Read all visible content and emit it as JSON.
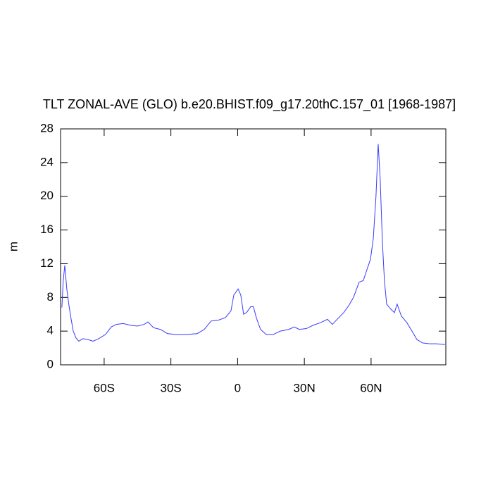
{
  "chart_data": {
    "type": "line",
    "title": "TLT ZONAL-AVE (GLO) b.e20.BHIST.f09_g17.20thC.157_01 [1968-1987]",
    "ylabel": "m",
    "x": [
      -79.0,
      -78.4,
      -77.7,
      -76.8,
      -75.8,
      -74.9,
      -73.9,
      -72.7,
      -71.4,
      -69.5,
      -67.3,
      -65.0,
      -62.5,
      -59.4,
      -56.8,
      -54.6,
      -51.4,
      -48.3,
      -45.1,
      -42.0,
      -40.3,
      -37.8,
      -34.7,
      -31.5,
      -27.7,
      -23.0,
      -18.2,
      -15.0,
      -11.9,
      -8.7,
      -5.5,
      -3.0,
      -1.7,
      -0.8,
      0.2,
      1.4,
      2.7,
      4.0,
      5.9,
      7.1,
      8.4,
      10.3,
      12.8,
      16.0,
      19.2,
      23.0,
      25.5,
      27.7,
      30.9,
      34.0,
      37.2,
      40.4,
      42.6,
      45.1,
      47.7,
      49.9,
      52.1,
      54.6,
      56.5,
      58.4,
      59.7,
      61.0,
      62.2,
      63.2,
      64.1,
      65.1,
      66.0,
      67.0,
      68.9,
      70.5,
      71.7,
      73.6,
      76.1,
      78.4,
      80.6,
      83.1,
      86.3,
      89.4,
      93.2
    ],
    "series": [
      {
        "name": "TLT",
        "color": "#3a3aff",
        "values": [
          6.8,
          10.0,
          11.8,
          9.0,
          7.0,
          5.5,
          4.0,
          3.2,
          2.8,
          3.1,
          3.0,
          2.8,
          3.1,
          3.6,
          4.5,
          4.8,
          4.9,
          4.7,
          4.6,
          4.8,
          5.1,
          4.4,
          4.2,
          3.7,
          3.6,
          3.6,
          3.7,
          4.2,
          5.2,
          5.3,
          5.6,
          6.4,
          8.3,
          8.6,
          9.0,
          8.3,
          6.0,
          6.2,
          6.9,
          6.9,
          5.6,
          4.2,
          3.6,
          3.6,
          4.0,
          4.2,
          4.5,
          4.2,
          4.3,
          4.7,
          5.0,
          5.4,
          4.8,
          5.5,
          6.2,
          7.0,
          8.0,
          9.8,
          10.0,
          11.5,
          12.5,
          15.0,
          20.0,
          26.2,
          22.0,
          14.5,
          10.0,
          7.2,
          6.6,
          6.2,
          7.2,
          5.8,
          5.0,
          4.0,
          3.0,
          2.6,
          2.5,
          2.5,
          2.4
        ]
      }
    ],
    "xlim": [
      -79.6,
      93.6
    ],
    "xticks": [
      {
        "value": -60,
        "label": "60S"
      },
      {
        "value": -30,
        "label": "30S"
      },
      0,
      {
        "value": 30,
        "label": "30N"
      },
      {
        "value": 60,
        "label": "60N"
      }
    ],
    "ylim": [
      0,
      28
    ],
    "yticks": [
      0,
      4,
      8,
      12,
      16,
      20,
      24,
      28
    ],
    "grid": false
  }
}
